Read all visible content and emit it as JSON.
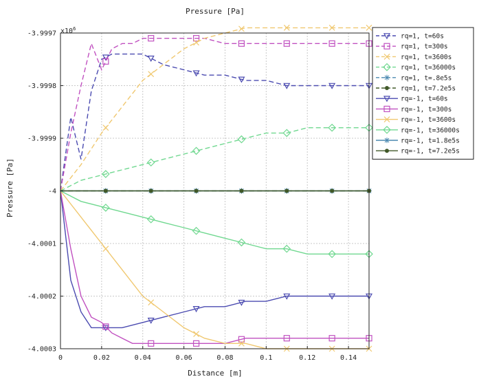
{
  "chart_data": {
    "type": "line",
    "title": "Pressure [Pa]",
    "xlabel": "Distance [m]",
    "ylabel": "Pressure [Pa]",
    "y_exponent_label": "x10",
    "y_exponent_power": "6",
    "xlim": [
      0,
      0.15
    ],
    "ylim": [
      -4.0003,
      -3.9997
    ],
    "xticks": [
      0,
      0.02,
      0.04,
      0.06,
      0.08,
      0.1,
      0.12,
      0.14
    ],
    "xtick_labels": [
      "0",
      "0.02",
      "0.04",
      "0.06",
      "0.08",
      "0.1",
      "0.12",
      "0.14"
    ],
    "yticks": [
      -4.0003,
      -4.0002,
      -4.0001,
      -4.0,
      -3.9999,
      -3.9998,
      -3.9997
    ],
    "ytick_labels": [
      "-4.0003",
      "-4.0002",
      "-4.0001",
      "-4",
      "-3.9999",
      "-3.9998",
      "-3.9997"
    ],
    "grid": true,
    "legend_position": "outside-right",
    "series": [
      {
        "name": "rq=1, t=60s",
        "color": "#4a4ab0",
        "dash": true,
        "marker": "triangle-down",
        "x": [
          0,
          0.005,
          0.01,
          0.015,
          0.02,
          0.025,
          0.03,
          0.04,
          0.05,
          0.06,
          0.07,
          0.08,
          0.09,
          0.1,
          0.11,
          0.12,
          0.13,
          0.14,
          0.15
        ],
        "y": [
          -4.0,
          -3.99986,
          -3.99994,
          -3.99981,
          -3.99975,
          -3.99974,
          -3.99974,
          -3.99974,
          -3.99976,
          -3.99977,
          -3.99978,
          -3.99978,
          -3.99979,
          -3.99979,
          -3.9998,
          -3.9998,
          -3.9998,
          -3.9998,
          -3.9998
        ],
        "marker_x": [
          0.022,
          0.044,
          0.066,
          0.088,
          0.11,
          0.132,
          0.15
        ]
      },
      {
        "name": "rq=1, t=300s",
        "color": "#c050c0",
        "dash": true,
        "marker": "square",
        "x": [
          0,
          0.005,
          0.01,
          0.015,
          0.02,
          0.025,
          0.03,
          0.035,
          0.04,
          0.05,
          0.06,
          0.07,
          0.08,
          0.09,
          0.1,
          0.11,
          0.12,
          0.13,
          0.14,
          0.15
        ],
        "y": [
          -4.0,
          -3.99989,
          -3.9998,
          -3.99972,
          -3.99977,
          -3.99973,
          -3.99972,
          -3.99972,
          -3.99971,
          -3.99971,
          -3.99971,
          -3.99971,
          -3.99972,
          -3.99972,
          -3.99972,
          -3.99972,
          -3.99972,
          -3.99972,
          -3.99972,
          -3.99972
        ],
        "marker_x": [
          0.022,
          0.044,
          0.066,
          0.088,
          0.11,
          0.132,
          0.15
        ]
      },
      {
        "name": "rq=1, t=3600s",
        "color": "#f0c870",
        "dash": true,
        "marker": "x",
        "x": [
          0,
          0.01,
          0.02,
          0.03,
          0.04,
          0.05,
          0.06,
          0.07,
          0.08,
          0.09,
          0.1,
          0.11,
          0.12,
          0.13,
          0.14,
          0.15
        ],
        "y": [
          -4.0,
          -3.99995,
          -3.99989,
          -3.99984,
          -3.99979,
          -3.99976,
          -3.99973,
          -3.99971,
          -3.9997,
          -3.99969,
          -3.99969,
          -3.99969,
          -3.99969,
          -3.99969,
          -3.99969,
          -3.99969
        ],
        "marker_x": [
          0.022,
          0.044,
          0.066,
          0.088,
          0.11,
          0.132,
          0.15
        ]
      },
      {
        "name": "rq=1, t=36000s",
        "color": "#70d890",
        "dash": true,
        "marker": "diamond",
        "x": [
          0,
          0.01,
          0.02,
          0.03,
          0.04,
          0.05,
          0.06,
          0.07,
          0.08,
          0.09,
          0.1,
          0.11,
          0.12,
          0.13,
          0.14,
          0.15
        ],
        "y": [
          -4.0,
          -3.99998,
          -3.99997,
          -3.99996,
          -3.99995,
          -3.99994,
          -3.99993,
          -3.99992,
          -3.99991,
          -3.9999,
          -3.99989,
          -3.99989,
          -3.99988,
          -3.99988,
          -3.99988,
          -3.99988
        ],
        "marker_x": [
          0.022,
          0.044,
          0.066,
          0.088,
          0.11,
          0.132,
          0.15
        ]
      },
      {
        "name": "rq=1, t=.8e5s",
        "color": "#4a88b0",
        "dash": true,
        "marker": "star",
        "x": [
          0,
          0.15
        ],
        "y": [
          -4.0,
          -4.0
        ],
        "marker_x": [
          0.022,
          0.044,
          0.066,
          0.088,
          0.11,
          0.132,
          0.15
        ]
      },
      {
        "name": "rq=1, t=7.2e5s",
        "color": "#405828",
        "dash": true,
        "marker": "dot",
        "x": [
          0,
          0.15
        ],
        "y": [
          -4.0,
          -4.0
        ],
        "marker_x": [
          0.022,
          0.044,
          0.066,
          0.088,
          0.11,
          0.132,
          0.15
        ]
      },
      {
        "name": "rq=-1, t=60s",
        "color": "#4a4ab0",
        "dash": false,
        "marker": "triangle-down",
        "x": [
          0,
          0.005,
          0.01,
          0.015,
          0.02,
          0.025,
          0.03,
          0.04,
          0.05,
          0.06,
          0.07,
          0.08,
          0.09,
          0.1,
          0.11,
          0.12,
          0.13,
          0.14,
          0.15
        ],
        "y": [
          -4.0,
          -4.00017,
          -4.00023,
          -4.00026,
          -4.00026,
          -4.00026,
          -4.00026,
          -4.00025,
          -4.00024,
          -4.00023,
          -4.00022,
          -4.00022,
          -4.00021,
          -4.00021,
          -4.0002,
          -4.0002,
          -4.0002,
          -4.0002,
          -4.0002
        ],
        "marker_x": [
          0.022,
          0.044,
          0.066,
          0.088,
          0.11,
          0.132,
          0.15
        ]
      },
      {
        "name": "rq=-1, t=300s",
        "color": "#c050c0",
        "dash": false,
        "marker": "square",
        "x": [
          0,
          0.005,
          0.01,
          0.015,
          0.02,
          0.025,
          0.03,
          0.035,
          0.04,
          0.05,
          0.06,
          0.07,
          0.08,
          0.09,
          0.1,
          0.11,
          0.12,
          0.13,
          0.14,
          0.15
        ],
        "y": [
          -4.0,
          -4.00011,
          -4.0002,
          -4.00024,
          -4.00025,
          -4.00027,
          -4.00028,
          -4.00029,
          -4.00029,
          -4.00029,
          -4.00029,
          -4.00029,
          -4.00029,
          -4.00028,
          -4.00028,
          -4.00028,
          -4.00028,
          -4.00028,
          -4.00028,
          -4.00028
        ],
        "marker_x": [
          0.022,
          0.044,
          0.066,
          0.088,
          0.11,
          0.132,
          0.15
        ]
      },
      {
        "name": "rq=-1, t=3600s",
        "color": "#f0c870",
        "dash": false,
        "marker": "x",
        "x": [
          0,
          0.01,
          0.02,
          0.03,
          0.04,
          0.05,
          0.06,
          0.07,
          0.08,
          0.09,
          0.1,
          0.11,
          0.12,
          0.13,
          0.14,
          0.15
        ],
        "y": [
          -4.0,
          -4.00005,
          -4.0001,
          -4.00015,
          -4.0002,
          -4.00023,
          -4.00026,
          -4.00028,
          -4.00029,
          -4.00029,
          -4.0003,
          -4.0003,
          -4.0003,
          -4.0003,
          -4.0003,
          -4.0003
        ],
        "marker_x": [
          0.022,
          0.044,
          0.066,
          0.088,
          0.11,
          0.132,
          0.15
        ]
      },
      {
        "name": "rq=-1, t=36000s",
        "color": "#70d890",
        "dash": false,
        "marker": "diamond",
        "x": [
          0,
          0.01,
          0.02,
          0.03,
          0.04,
          0.05,
          0.06,
          0.07,
          0.08,
          0.09,
          0.1,
          0.11,
          0.12,
          0.13,
          0.14,
          0.15
        ],
        "y": [
          -4.0,
          -4.00002,
          -4.00003,
          -4.00004,
          -4.00005,
          -4.00006,
          -4.00007,
          -4.00008,
          -4.00009,
          -4.0001,
          -4.00011,
          -4.00011,
          -4.00012,
          -4.00012,
          -4.00012,
          -4.00012
        ],
        "marker_x": [
          0.022,
          0.044,
          0.066,
          0.088,
          0.11,
          0.132,
          0.15
        ]
      },
      {
        "name": "rq=-1, t=1.8e5s",
        "color": "#4a88b0",
        "dash": false,
        "marker": "star",
        "x": [
          0,
          0.15
        ],
        "y": [
          -4.0,
          -4.0
        ],
        "marker_x": [
          0.022,
          0.044,
          0.066,
          0.088,
          0.11,
          0.132,
          0.15
        ]
      },
      {
        "name": "rq=-1, t=7.2e5s",
        "color": "#405828",
        "dash": false,
        "marker": "dot",
        "x": [
          0,
          0.15
        ],
        "y": [
          -4.0,
          -4.0
        ],
        "marker_x": [
          0.022,
          0.044,
          0.066,
          0.088,
          0.11,
          0.132,
          0.15
        ]
      }
    ]
  }
}
